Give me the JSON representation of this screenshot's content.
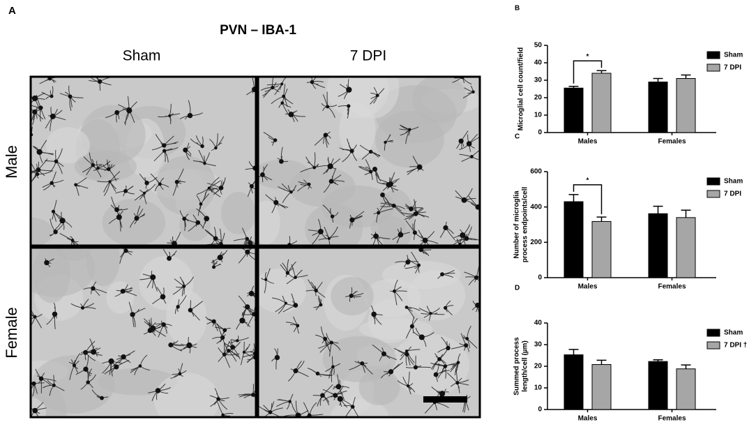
{
  "image_panel": {
    "panel_label": "A",
    "title": "PVN – IBA-1",
    "columns": [
      "Sham",
      "7 DPI"
    ],
    "rows": [
      "Male",
      "Female"
    ]
  },
  "chart_data": [
    {
      "type": "bar",
      "panel_label": "B",
      "ylabel": [
        "Microglial cell count/field"
      ],
      "categories": [
        "Males",
        "Females"
      ],
      "series": [
        {
          "name": "Sham",
          "color": "#000000",
          "values": [
            25.5,
            29
          ],
          "errors": [
            1,
            2
          ]
        },
        {
          "name": "7 DPI",
          "color": "#a6a6a6",
          "values": [
            34,
            31
          ],
          "errors": [
            1.5,
            2
          ]
        }
      ],
      "ylim": [
        0,
        50
      ],
      "yticks": [
        0,
        10,
        20,
        30,
        40,
        50
      ],
      "annotation": "*"
    },
    {
      "type": "bar",
      "panel_label": "C",
      "ylabel": [
        "Number of microglia",
        "process endpoints/cell"
      ],
      "categories": [
        "Males",
        "Females"
      ],
      "series": [
        {
          "name": "Sham",
          "color": "#000000",
          "values": [
            430,
            362
          ],
          "errors": [
            40,
            42
          ]
        },
        {
          "name": "7 DPI",
          "color": "#a6a6a6",
          "values": [
            318,
            340
          ],
          "errors": [
            25,
            42
          ]
        }
      ],
      "ylim": [
        0,
        600
      ],
      "yticks": [
        0,
        200,
        400,
        600
      ],
      "annotation": "*"
    },
    {
      "type": "bar",
      "panel_label": "D",
      "ylabel": [
        "Summed process",
        "length/cell (µm)"
      ],
      "categories": [
        "Males",
        "Females"
      ],
      "series": [
        {
          "name": "Sham",
          "color": "#000000",
          "values": [
            25.3,
            22.2
          ],
          "errors": [
            2.5,
            0.8
          ]
        },
        {
          "name": "7 DPI †",
          "color": "#a6a6a6",
          "values": [
            20.8,
            18.8
          ],
          "errors": [
            2,
            1.8
          ]
        }
      ],
      "ylim": [
        0,
        40
      ],
      "yticks": [
        0,
        10,
        20,
        30,
        40
      ]
    }
  ]
}
